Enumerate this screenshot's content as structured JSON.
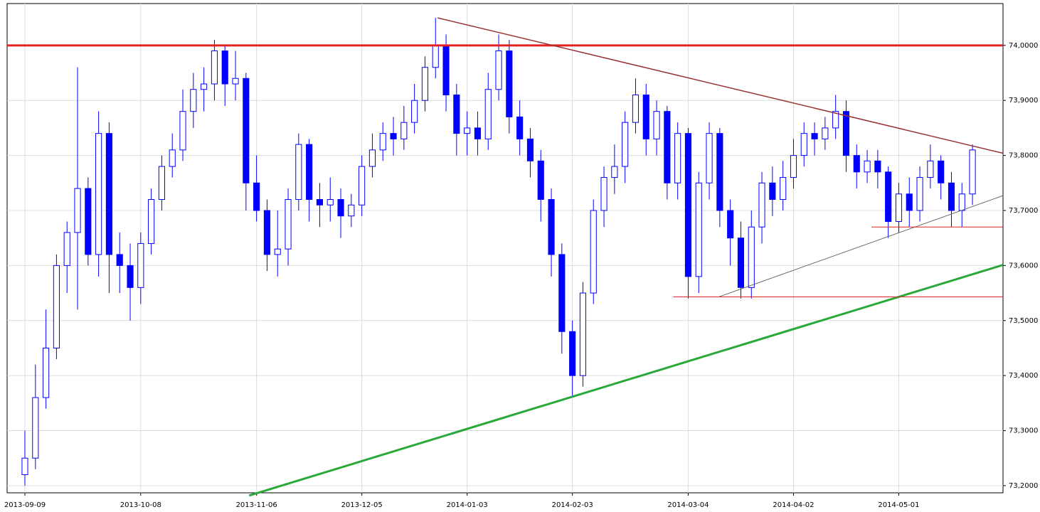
{
  "chart_data": {
    "type": "candlestick",
    "xlim": [
      -1.69,
      92.9
    ],
    "ylim": [
      73.187,
      74.076
    ],
    "xticks": [
      {
        "value": 0,
        "label": "2013-09-09"
      },
      {
        "value": 11,
        "label": "2013-10-08"
      },
      {
        "value": 22,
        "label": "2013-11-06"
      },
      {
        "value": 32,
        "label": "2013-12-05"
      },
      {
        "value": 42,
        "label": "2014-01-03"
      },
      {
        "value": 52,
        "label": "2014-02-03"
      },
      {
        "value": 63,
        "label": "2014-03-04"
      },
      {
        "value": 73,
        "label": "2014-04-02"
      },
      {
        "value": 83,
        "label": "2014-05-01"
      }
    ],
    "yticks": [
      {
        "value": 73.2,
        "label": "73,2000"
      },
      {
        "value": 73.3,
        "label": "73,3000"
      },
      {
        "value": 73.4,
        "label": "73,4000"
      },
      {
        "value": 73.5,
        "label": "73,5000"
      },
      {
        "value": 73.6,
        "label": "73,6000"
      },
      {
        "value": 73.7,
        "label": "73,7000"
      },
      {
        "value": 73.8,
        "label": "73,8000"
      },
      {
        "value": 73.9,
        "label": "73,9000"
      },
      {
        "value": 74.0,
        "label": "74,0000"
      }
    ],
    "grid": true,
    "up_color": "#ffffff",
    "down_color": "#0000ff",
    "edge_color": "#0000ff",
    "open": [
      73.22,
      73.25,
      73.36,
      73.45,
      73.6,
      73.66,
      73.74,
      73.62,
      73.84,
      73.62,
      73.6,
      73.56,
      73.64,
      73.72,
      73.78,
      73.81,
      73.88,
      73.92,
      73.93,
      73.99,
      73.93,
      73.94,
      73.75,
      73.7,
      73.62,
      73.63,
      73.72,
      73.82,
      73.72,
      73.71,
      73.72,
      73.69,
      73.71,
      73.78,
      73.81,
      73.84,
      73.83,
      73.86,
      73.9,
      73.96,
      74.0,
      73.91,
      73.84,
      73.85,
      73.83,
      73.92,
      73.99,
      73.87,
      73.83,
      73.79,
      73.72,
      73.62,
      73.48,
      73.4,
      73.55,
      73.7,
      73.76,
      73.78,
      73.86,
      73.91,
      73.83,
      73.88,
      73.75,
      73.84,
      73.58,
      73.75,
      73.84,
      73.7,
      73.65,
      73.56,
      73.67,
      73.75,
      73.72,
      73.76,
      73.8,
      73.84,
      73.83,
      73.85,
      73.88,
      73.8,
      73.77,
      73.79,
      73.77,
      73.68,
      73.73,
      73.7,
      73.76,
      73.79,
      73.75,
      73.7,
      73.73
    ],
    "high": [
      73.3,
      73.42,
      73.52,
      73.62,
      73.68,
      73.96,
      73.76,
      73.88,
      73.86,
      73.66,
      73.64,
      73.66,
      73.74,
      73.8,
      73.84,
      73.92,
      73.95,
      73.96,
      74.01,
      74.0,
      73.99,
      73.95,
      73.8,
      73.72,
      73.7,
      73.74,
      73.84,
      73.83,
      73.75,
      73.76,
      73.74,
      73.73,
      73.8,
      73.84,
      73.86,
      73.87,
      73.89,
      73.93,
      73.98,
      74.05,
      74.02,
      73.93,
      73.88,
      73.88,
      73.95,
      74.02,
      74.01,
      73.9,
      73.85,
      73.81,
      73.74,
      73.64,
      73.5,
      73.57,
      73.72,
      73.78,
      73.82,
      73.88,
      73.94,
      73.93,
      73.9,
      73.89,
      73.86,
      73.85,
      73.77,
      73.86,
      73.85,
      73.72,
      73.68,
      73.7,
      73.77,
      73.78,
      73.79,
      73.83,
      73.86,
      73.86,
      73.87,
      73.91,
      73.9,
      73.82,
      73.81,
      73.81,
      73.78,
      73.75,
      73.76,
      73.78,
      73.82,
      73.8,
      73.77,
      73.75,
      73.82
    ],
    "low": [
      73.2,
      73.23,
      73.34,
      73.43,
      73.55,
      73.52,
      73.6,
      73.58,
      73.55,
      73.55,
      73.5,
      73.53,
      73.62,
      73.7,
      73.76,
      73.79,
      73.85,
      73.88,
      73.9,
      73.89,
      73.9,
      73.7,
      73.68,
      73.59,
      73.58,
      73.6,
      73.7,
      73.68,
      73.67,
      73.68,
      73.65,
      73.67,
      73.69,
      73.76,
      73.79,
      73.8,
      73.81,
      73.84,
      73.88,
      73.94,
      73.88,
      73.8,
      73.8,
      73.8,
      73.81,
      73.9,
      73.84,
      73.8,
      73.76,
      73.68,
      73.58,
      73.44,
      73.36,
      73.38,
      73.53,
      73.67,
      73.73,
      73.75,
      73.84,
      73.8,
      73.8,
      73.72,
      73.72,
      73.54,
      73.55,
      73.72,
      73.67,
      73.6,
      73.54,
      73.54,
      73.64,
      73.69,
      73.7,
      73.74,
      73.78,
      73.8,
      73.81,
      73.83,
      73.77,
      73.74,
      73.75,
      73.74,
      73.65,
      73.66,
      73.67,
      73.68,
      73.74,
      73.72,
      73.67,
      73.67,
      73.71
    ],
    "close": [
      73.25,
      73.36,
      73.45,
      73.6,
      73.66,
      73.74,
      73.62,
      73.84,
      73.62,
      73.6,
      73.56,
      73.64,
      73.72,
      73.78,
      73.81,
      73.88,
      73.92,
      73.93,
      73.99,
      73.93,
      73.94,
      73.75,
      73.7,
      73.62,
      73.63,
      73.72,
      73.82,
      73.72,
      73.71,
      73.72,
      73.69,
      73.71,
      73.78,
      73.81,
      73.84,
      73.83,
      73.86,
      73.9,
      73.96,
      74.0,
      73.91,
      73.84,
      73.85,
      73.83,
      73.92,
      73.99,
      73.87,
      73.83,
      73.79,
      73.72,
      73.62,
      73.48,
      73.4,
      73.55,
      73.7,
      73.76,
      73.78,
      73.86,
      73.91,
      73.83,
      73.88,
      73.75,
      73.84,
      73.58,
      73.75,
      73.84,
      73.7,
      73.65,
      73.56,
      73.67,
      73.75,
      73.72,
      73.76,
      73.8,
      73.84,
      73.83,
      73.85,
      73.88,
      73.8,
      73.77,
      73.79,
      73.77,
      73.68,
      73.73,
      73.7,
      73.76,
      73.79,
      73.75,
      73.7,
      73.73,
      73.81
    ],
    "lines": [
      {
        "color": "#e52020",
        "width": 3,
        "x": [
          -1.69,
          92.9
        ],
        "y": [
          74.0,
          74.0
        ]
      },
      {
        "color": "#2aa83a",
        "width": 3,
        "x": [
          21.3,
          92.9
        ],
        "y": [
          73.182,
          73.601
        ]
      },
      {
        "color": "#993333",
        "width": 1.5,
        "x": [
          39.2,
          92.9
        ],
        "y": [
          74.05,
          73.804
        ]
      },
      {
        "color": "#666666",
        "width": 1,
        "x": [
          65.9,
          92.9
        ],
        "y": [
          73.543,
          73.727
        ]
      },
      {
        "color": "#dd2222",
        "width": 1,
        "x": [
          80.4,
          92.9
        ],
        "y": [
          73.67,
          73.67
        ]
      },
      {
        "color": "#dd2222",
        "width": 1,
        "x": [
          61.6,
          92.9
        ],
        "y": [
          73.543,
          73.543
        ]
      }
    ]
  }
}
